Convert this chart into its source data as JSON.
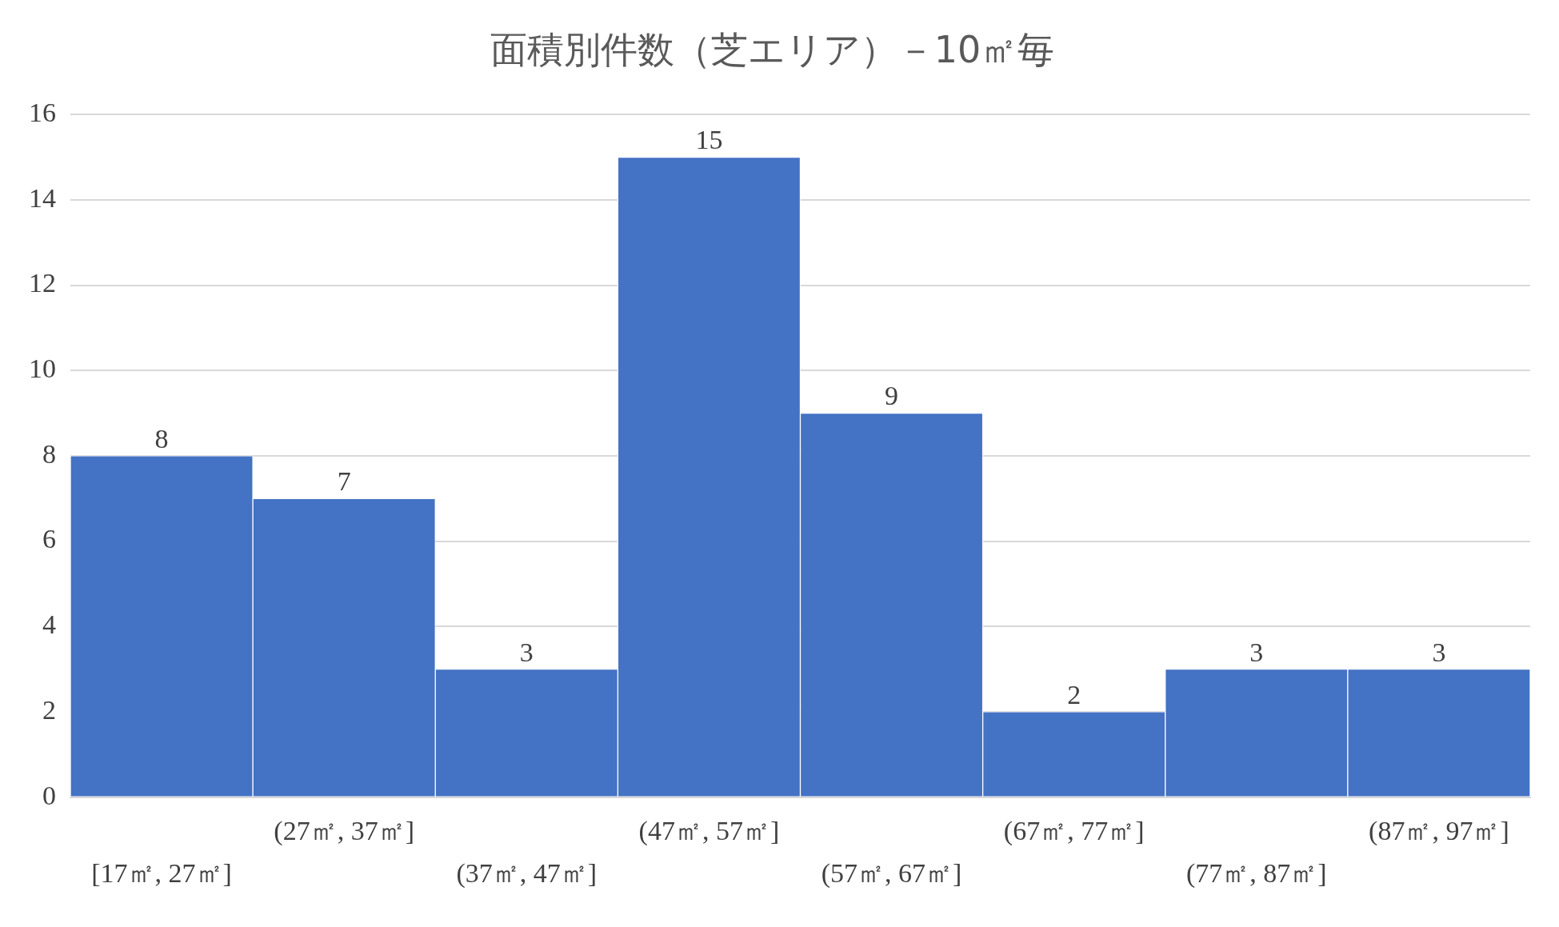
{
  "chart_data": {
    "type": "bar",
    "title": "面積別件数（芝エリア）－10㎡毎",
    "categories": [
      "[17㎡, 27㎡]",
      "(27㎡, 37㎡]",
      "(37㎡, 47㎡]",
      "(47㎡, 57㎡]",
      "(57㎡, 67㎡]",
      "(67㎡, 77㎡]",
      "(77㎡, 87㎡]",
      "(87㎡, 97㎡]"
    ],
    "values": [
      8,
      7,
      3,
      15,
      9,
      2,
      3,
      3
    ],
    "color": "#4472c4",
    "ylim": [
      0,
      16
    ],
    "yticks": [
      0,
      2,
      4,
      6,
      8,
      10,
      12,
      14,
      16
    ],
    "grid": "y",
    "data_labels": true,
    "legend": false
  }
}
